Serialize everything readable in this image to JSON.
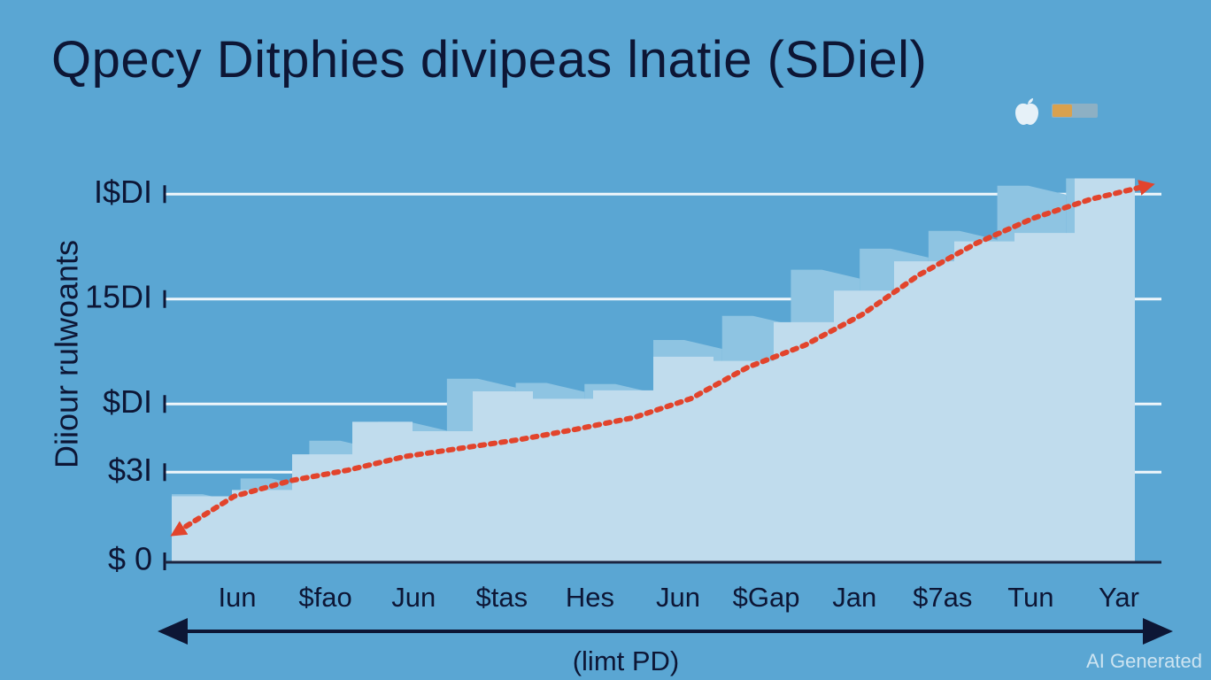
{
  "chart_data": {
    "type": "bar",
    "title": "Qpecy Ditphies divipeas lnatie (SDiel)",
    "ylabel": "Diiour rulwoants",
    "xlabel": "(limt PD)",
    "ylim": [
      0,
      40
    ],
    "y_ticks": [
      {
        "value": 0,
        "label": "$ 0"
      },
      {
        "value": 8.5,
        "label": "$3I"
      },
      {
        "value": 15,
        "label": "$DI"
      },
      {
        "value": 25,
        "label": "15DI"
      },
      {
        "value": 35,
        "label": "I$DI"
      }
    ],
    "x_tick_labels": [
      "Iun",
      "$fao",
      "Jun",
      "$tas",
      "Hes",
      "Jun",
      "$Gap",
      "Jan",
      "$7as",
      "Tun",
      "Yar"
    ],
    "series": [
      {
        "values": [
          6.4,
          7.9,
          11.5,
          13.3,
          17.4,
          17,
          16.9,
          21.1,
          23.4,
          27.8,
          29.8,
          31.5,
          35.8,
          36.5
        ]
      },
      {
        "values": [
          6.2,
          6.8,
          10.2,
          13.3,
          12.4,
          16.2,
          15.5,
          16.3,
          19.5,
          19.1,
          22.8,
          25.8,
          28.6,
          30.5,
          31.3,
          36.5
        ]
      }
    ],
    "trend": {
      "values": [
        2.8,
        6.2,
        7.7,
        8.7,
        10,
        10.8,
        11.6,
        12.6,
        13.7,
        15.5,
        18.5,
        20.6,
        23.5,
        27.3,
        30.3,
        32.7,
        34.5,
        35.8
      ]
    },
    "colors": {
      "background": "#5aa6d3",
      "bar_back": "#8ec4e2",
      "bar_front": "#c0dced",
      "trend": "#e2442c",
      "text": "#0d1635",
      "grid": "#eef6fb"
    }
  },
  "watermark": "AI Generated",
  "icons": [
    "apple-icon",
    "battery-icon"
  ]
}
